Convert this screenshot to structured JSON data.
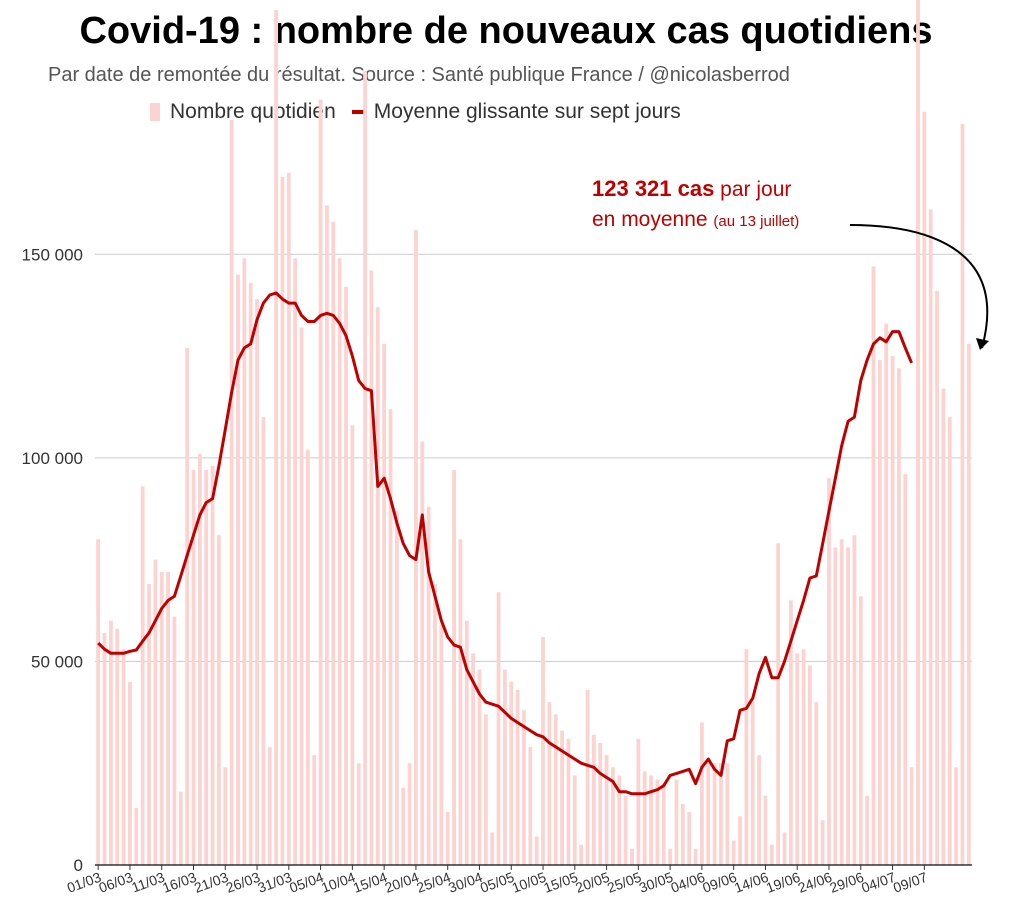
{
  "chart_data": {
    "type": "bar+line",
    "title": "Covid-19 : nombre de nouveaux cas quotidiens",
    "subtitle": "Par date de remontée du résultat. Source : Santé publique France / @nicolasberrod",
    "legend": {
      "bars": "Nombre quotidien",
      "line": "Moyenne glissante sur sept jours"
    },
    "ylim": [
      0,
      210000
    ],
    "yticks": [
      0,
      50000,
      100000,
      150000
    ],
    "ytick_labels": [
      "0",
      "50 000",
      "100 000",
      "150 000"
    ],
    "xtick_labels": [
      "01/03",
      "06/03",
      "11/03",
      "16/03",
      "21/03",
      "26/03",
      "31/03",
      "05/04",
      "10/04",
      "15/04",
      "20/04",
      "25/04",
      "30/04",
      "05/05",
      "10/05",
      "15/05",
      "20/05",
      "25/05",
      "30/05",
      "04/06",
      "09/06",
      "14/06",
      "19/06",
      "24/06",
      "29/06",
      "04/07",
      "09/07"
    ],
    "series": [
      {
        "name": "Nombre quotidien",
        "type": "bar",
        "color": "#fbd3d0",
        "values": [
          80000,
          57000,
          60000,
          58000,
          53000,
          45000,
          14000,
          93000,
          69000,
          75000,
          72000,
          72000,
          61000,
          18000,
          127000,
          97000,
          101000,
          97000,
          98000,
          81000,
          24000,
          183000,
          145000,
          149000,
          143000,
          139000,
          110000,
          29000,
          210000,
          169000,
          170000,
          149000,
          132000,
          102000,
          27000,
          188000,
          162000,
          158000,
          149000,
          142000,
          108000,
          25000,
          195000,
          146000,
          137000,
          128000,
          112000,
          87000,
          19000,
          25000,
          156000,
          104000,
          88000,
          69000,
          59000,
          13000,
          97000,
          80000,
          60000,
          52000,
          48000,
          37000,
          8000,
          67000,
          48000,
          45000,
          43000,
          38000,
          29000,
          7000,
          56000,
          40000,
          37000,
          33000,
          31000,
          22000,
          5000,
          43000,
          32000,
          30000,
          27000,
          24000,
          22000,
          17000,
          4000,
          31000,
          23000,
          22000,
          21000,
          20000,
          4000,
          21000,
          15000,
          13000,
          4000,
          35000,
          26000,
          25000,
          25000,
          25000,
          6000,
          12000,
          53000,
          40000,
          27000,
          17000,
          5000,
          79000,
          8000,
          65000,
          52000,
          53000,
          49000,
          40000,
          11000,
          95000,
          78000,
          80000,
          78000,
          81000,
          66000,
          17000,
          147000,
          124000,
          133000,
          125000,
          122000,
          96000,
          24000,
          217000,
          185000,
          161000,
          141000,
          117000,
          110000,
          24000,
          182000,
          128000
        ]
      },
      {
        "name": "Moyenne glissante sur sept jours",
        "type": "line",
        "color": "#c00000",
        "values": [
          54500,
          53000,
          52000,
          52000,
          52000,
          52500,
          52800,
          55000,
          57000,
          60000,
          63000,
          65000,
          66000,
          71000,
          76000,
          81000,
          86000,
          89000,
          90000,
          98000,
          107000,
          116000,
          124000,
          127000,
          128000,
          134000,
          138000,
          140000,
          140500,
          139000,
          138000,
          138000,
          135000,
          133500,
          133500,
          135000,
          135500,
          135000,
          133000,
          130000,
          125000,
          119000,
          117000,
          116500,
          93000,
          95000,
          90000,
          84000,
          79000,
          76000,
          75000,
          86000,
          72000,
          66000,
          60000,
          56000,
          54000,
          53500,
          48000,
          45000,
          42000,
          40000,
          39500,
          39000,
          37500,
          36000,
          35000,
          34000,
          33000,
          32000,
          31500,
          30000,
          29000,
          28000,
          27000,
          26000,
          25000,
          24500,
          24000,
          22500,
          21500,
          20500,
          18000,
          18000,
          17500,
          17500,
          17500,
          18000,
          18500,
          19500,
          22000,
          22500,
          23000,
          23500,
          20000,
          24000,
          26000,
          23500,
          22000,
          30500,
          31000,
          38000,
          38500,
          41000,
          47000,
          51000,
          46000,
          46000,
          50000,
          55000,
          60000,
          65000,
          70500,
          71000,
          79000,
          87000,
          95000,
          103000,
          109000,
          110000,
          119000,
          124000,
          128000,
          129500,
          128500,
          131000,
          131000,
          127000,
          123321
        ]
      }
    ],
    "annotation": {
      "value": "123 321 cas",
      "text1": " par jour",
      "text2": "en moyenne ",
      "text3": "(au 13 juillet)"
    }
  }
}
